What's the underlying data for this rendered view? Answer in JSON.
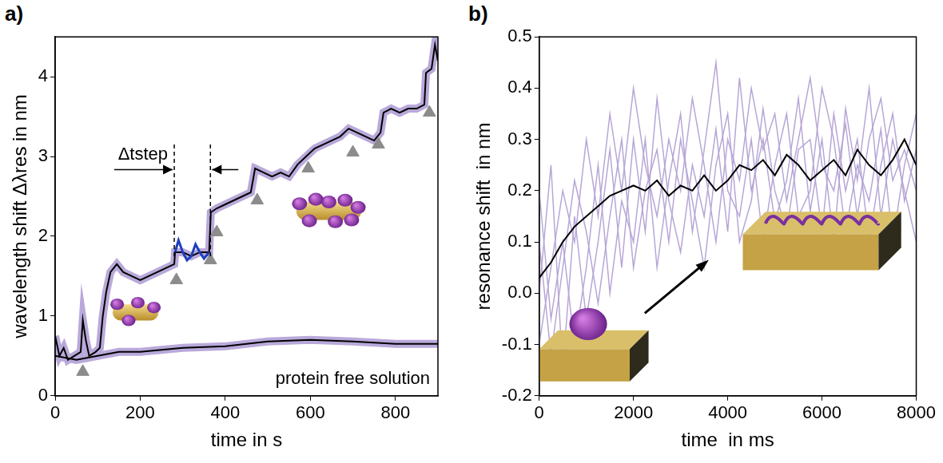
{
  "chart_data": [
    {
      "panel": "a)",
      "type": "line",
      "x_label": "time in s",
      "y_label": "wavelength shift Δλres in nm",
      "xlim": [
        0,
        900
      ],
      "xticks": [
        0,
        200,
        400,
        600,
        800
      ],
      "ylim": [
        0,
        4.5
      ],
      "yticks": [
        0,
        1,
        2,
        3,
        4
      ],
      "grid": false,
      "series": [
        {
          "type": "line",
          "color": "#000000",
          "x": [
            0,
            10,
            20,
            30,
            45,
            60,
            65,
            72,
            80,
            95,
            105,
            112,
            120,
            130,
            145,
            160,
            180,
            200,
            220,
            240,
            260,
            280,
            282,
            300,
            320,
            340,
            362,
            366,
            380,
            400,
            420,
            440,
            460,
            470,
            490,
            510,
            530,
            550,
            570,
            590,
            610,
            630,
            650,
            670,
            690,
            710,
            730,
            750,
            765,
            772,
            790,
            810,
            830,
            850,
            868,
            872,
            885,
            893,
            900
          ],
          "values": [
            0.75,
            0.5,
            0.6,
            0.45,
            0.5,
            0.55,
            0.95,
            0.7,
            0.5,
            0.55,
            0.6,
            1.0,
            1.3,
            1.55,
            1.65,
            1.55,
            1.5,
            1.45,
            1.5,
            1.55,
            1.6,
            1.65,
            1.8,
            1.8,
            1.75,
            1.8,
            1.8,
            2.3,
            2.35,
            2.4,
            2.45,
            2.5,
            2.55,
            2.85,
            2.8,
            2.75,
            2.8,
            2.75,
            2.9,
            3.0,
            3.1,
            3.15,
            3.2,
            3.25,
            3.35,
            3.3,
            3.25,
            3.2,
            3.3,
            3.55,
            3.6,
            3.55,
            3.6,
            3.6,
            3.65,
            4.05,
            4.1,
            4.4,
            4.2
          ]
        },
        {
          "type": "line",
          "color": "#1f3fbf",
          "x": [
            282,
            290,
            300,
            310,
            320,
            330,
            340,
            350,
            362
          ],
          "values": [
            1.8,
            1.95,
            1.8,
            1.7,
            1.75,
            1.9,
            1.8,
            1.72,
            1.8
          ]
        },
        {
          "type": "line",
          "color": "#000000",
          "x": [
            0,
            50,
            100,
            150,
            200,
            300,
            400,
            500,
            600,
            700,
            800,
            900
          ],
          "values": [
            0.5,
            0.45,
            0.5,
            0.55,
            0.55,
            0.6,
            0.62,
            0.68,
            0.7,
            0.68,
            0.65,
            0.65
          ]
        },
        {
          "type": "scatter",
          "marker": "triangle",
          "color": "#8c8c8c",
          "x": [
            65,
            285,
            365,
            380,
            475,
            595,
            700,
            760,
            880
          ],
          "values": [
            0.3,
            1.45,
            1.7,
            2.05,
            2.45,
            2.85,
            3.05,
            3.15,
            3.55
          ]
        }
      ],
      "annotations": [
        {
          "text": "Δtstep",
          "x_start": 280,
          "x_end": 365
        },
        {
          "text": "protein free solution"
        }
      ]
    },
    {
      "panel": "b)",
      "type": "line",
      "x_label": "time  in ms",
      "y_label": "resonance shift  in nm",
      "xlim": [
        0,
        8000
      ],
      "xticks": [
        0,
        2000,
        4000,
        6000,
        8000
      ],
      "ylim": [
        -0.2,
        0.5
      ],
      "yticks": [
        -0.2,
        -0.1,
        {
          "value": 0,
          "label": "0.0"
        },
        0.1,
        0.2,
        0.3,
        0.4,
        0.5
      ],
      "grid": false,
      "x": [
        0,
        250,
        500,
        750,
        1000,
        1250,
        1500,
        1750,
        2000,
        2250,
        2500,
        2750,
        3000,
        3250,
        3500,
        3750,
        4000,
        4250,
        4500,
        4750,
        5000,
        5250,
        5500,
        5750,
        6000,
        6250,
        6500,
        6750,
        7000,
        7250,
        7500,
        7750,
        8000
      ],
      "series": [
        {
          "type": "line",
          "color": "#b7a6d6",
          "values": [
            -0.1,
            0.05,
            0.2,
            0.1,
            0.3,
            0.15,
            0.35,
            0.2,
            0.4,
            0.25,
            0.15,
            0.3,
            0.2,
            0.38,
            0.25,
            0.1,
            0.3,
            0.22,
            0.4,
            0.28,
            0.35,
            0.18,
            0.3,
            0.42,
            0.25,
            0.2,
            0.33,
            0.15,
            0.3,
            0.38,
            0.22,
            0.28,
            0.2
          ]
        },
        {
          "type": "line",
          "color": "#b7a6d6",
          "values": [
            0.2,
            -0.05,
            0.1,
            -0.1,
            0.05,
            0.25,
            0.0,
            0.18,
            0.1,
            0.3,
            0.05,
            0.22,
            0.35,
            0.12,
            0.28,
            0.45,
            0.2,
            0.15,
            0.3,
            0.1,
            0.25,
            0.35,
            0.15,
            0.2,
            0.4,
            0.3,
            0.12,
            0.25,
            0.18,
            0.32,
            0.1,
            0.25,
            0.35
          ]
        },
        {
          "type": "line",
          "color": "#b7a6d6",
          "values": [
            0.0,
            0.25,
            -0.15,
            0.15,
            -0.05,
            0.1,
            0.28,
            0.05,
            0.3,
            0.12,
            0.38,
            0.18,
            0.08,
            0.25,
            0.15,
            0.32,
            0.12,
            0.42,
            0.2,
            0.3,
            0.14,
            0.22,
            0.38,
            0.16,
            0.3,
            0.1,
            0.36,
            0.22,
            0.4,
            0.15,
            0.3,
            0.2,
            0.1
          ]
        },
        {
          "type": "line",
          "color": "#b7a6d6",
          "values": [
            0.1,
            -0.12,
            0.05,
            0.22,
            0.12,
            -0.02,
            0.15,
            0.3,
            0.05,
            0.2,
            0.28,
            0.1,
            0.3,
            0.18,
            0.05,
            0.25,
            0.35,
            0.1,
            0.18,
            0.36,
            0.2,
            0.12,
            0.28,
            0.3,
            0.12,
            0.35,
            0.2,
            0.3,
            0.1,
            0.25,
            0.35,
            0.18,
            0.28
          ]
        },
        {
          "type": "line",
          "color": "#000000",
          "values": [
            0.03,
            0.06,
            0.1,
            0.13,
            0.15,
            0.17,
            0.19,
            0.2,
            0.21,
            0.2,
            0.22,
            0.19,
            0.21,
            0.2,
            0.23,
            0.2,
            0.22,
            0.25,
            0.24,
            0.26,
            0.23,
            0.27,
            0.25,
            0.22,
            0.24,
            0.26,
            0.23,
            0.28,
            0.25,
            0.23,
            0.26,
            0.3,
            0.25
          ]
        }
      ]
    }
  ]
}
